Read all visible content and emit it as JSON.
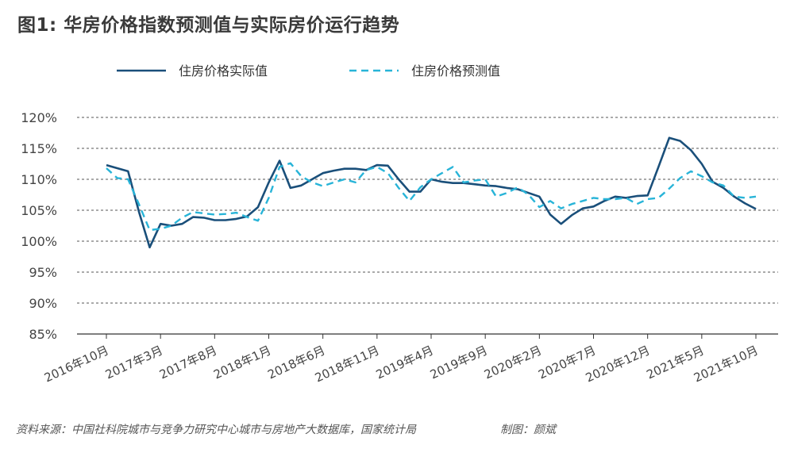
{
  "title": "图1: 华房价格指数预测值与实际房价运行趋势",
  "source": "资料来源：中国社科院城市与竞争力研究中心城市与房地产大数据库，国家统计局",
  "credit": "制图：颜斌",
  "colors": {
    "actual": "#1a4f7a",
    "forecast": "#28b4d8",
    "grid": "#555555",
    "axis": "#333333"
  },
  "chart_data": {
    "type": "line",
    "title": "图1: 华房价格指数预测值与实际房价运行趋势",
    "ylim": [
      85,
      120
    ],
    "yticks": [
      "120%",
      "115%",
      "110%",
      "105%",
      "100%",
      "95%",
      "90%",
      "85%"
    ],
    "x_tick_labels": [
      "2016年10月",
      "2017年3月",
      "2017年8月",
      "2018年1月",
      "2018年6月",
      "2018年11月",
      "2019年4月",
      "2019年9月",
      "2020年2月",
      "2020年7月",
      "2020年12月",
      "2021年5月",
      "2021年10月"
    ],
    "legend": "top",
    "grid": "horizontal dashed",
    "series": [
      {
        "name": "住房价格实际值",
        "style": "solid",
        "values": [
          112.3,
          111.8,
          111.3,
          104.8,
          99.0,
          102.8,
          102.5,
          102.8,
          103.9,
          103.8,
          103.4,
          103.4,
          103.6,
          104.0,
          105.5,
          109.5,
          113.0,
          108.6,
          109.0,
          110.0,
          111.0,
          111.4,
          111.7,
          111.7,
          111.5,
          112.3,
          112.2,
          110.0,
          108.0,
          108.0,
          110.0,
          109.6,
          109.4,
          109.4,
          109.2,
          109.0,
          108.9,
          108.6,
          108.4,
          107.8,
          107.2,
          104.3,
          102.8,
          104.2,
          105.3,
          105.6,
          106.5,
          107.2,
          107.0,
          107.3,
          107.4,
          112.0,
          116.7,
          116.2,
          114.7,
          112.5,
          109.6,
          108.6,
          107.2,
          106.1,
          105.2
        ]
      },
      {
        "name": "住房价格预测值",
        "style": "dashed",
        "values": [
          111.8,
          110.2,
          110.0,
          106.0,
          101.8,
          102.0,
          102.5,
          103.8,
          104.7,
          104.5,
          104.3,
          104.4,
          104.6,
          103.9,
          103.3,
          107.0,
          112.0,
          112.6,
          110.5,
          109.5,
          108.9,
          109.5,
          110.0,
          109.5,
          111.5,
          112.0,
          111.0,
          108.6,
          106.5,
          108.7,
          110.0,
          111.0,
          112.0,
          109.5,
          109.8,
          110.0,
          107.2,
          107.8,
          108.7,
          107.5,
          105.5,
          106.5,
          105.3,
          106.0,
          106.5,
          107.0,
          106.8,
          106.8,
          107.0,
          106.0,
          106.8,
          107.0,
          108.5,
          110.2,
          111.3,
          110.5,
          109.5,
          109.0,
          107.2,
          107.0,
          107.2
        ]
      }
    ]
  }
}
